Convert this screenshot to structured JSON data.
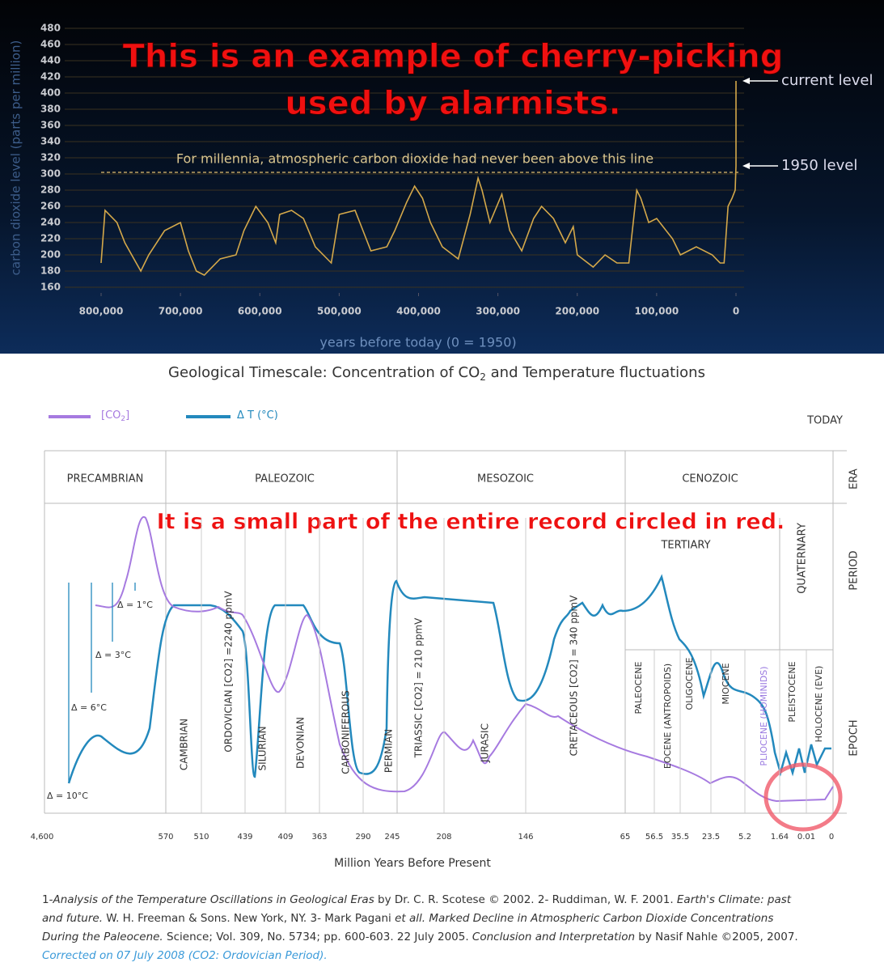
{
  "chart_data": {
    "type": "line",
    "annotation_lines": [
      "This is an example of cherry-picking",
      "used by alarmists."
    ],
    "ylabel": "carbon dioxide level (parts per million)",
    "xlabel": "years before today (0 = 1950)",
    "xlim": [
      800000,
      0
    ],
    "ylim": [
      160,
      480
    ],
    "yticks": [
      160,
      180,
      200,
      220,
      240,
      260,
      280,
      300,
      320,
      340,
      360,
      380,
      400,
      420,
      440,
      460,
      480
    ],
    "xticks": [
      {
        "value": 800000,
        "label": "800,000"
      },
      {
        "value": 700000,
        "label": "700,000"
      },
      {
        "value": 600000,
        "label": "600,000"
      },
      {
        "value": 500000,
        "label": "500,000"
      },
      {
        "value": 400000,
        "label": "400,000"
      },
      {
        "value": 300000,
        "label": "300,000"
      },
      {
        "value": 200000,
        "label": "200,000"
      },
      {
        "value": 100000,
        "label": "100,000"
      },
      0
    ],
    "grid": true,
    "color": "#d4a84a",
    "x": [
      800000,
      795000,
      780000,
      770000,
      750000,
      740000,
      720000,
      700000,
      690000,
      680000,
      670000,
      650000,
      630000,
      620000,
      605000,
      590000,
      580000,
      575000,
      560000,
      545000,
      530000,
      510000,
      500000,
      480000,
      470000,
      460000,
      440000,
      430000,
      415000,
      405000,
      395000,
      385000,
      370000,
      350000,
      335000,
      325000,
      320000,
      310000,
      295000,
      285000,
      270000,
      255000,
      245000,
      230000,
      215000,
      205000,
      200000,
      180000,
      165000,
      150000,
      135000,
      125000,
      120000,
      110000,
      100000,
      80000,
      70000,
      50000,
      30000,
      20000,
      15000,
      10000,
      5000,
      1000,
      0,
      0
    ],
    "values": [
      190,
      255,
      240,
      215,
      180,
      200,
      230,
      240,
      205,
      180,
      175,
      195,
      200,
      230,
      260,
      240,
      215,
      250,
      255,
      245,
      210,
      190,
      250,
      255,
      230,
      205,
      210,
      230,
      265,
      285,
      270,
      240,
      210,
      195,
      250,
      295,
      280,
      240,
      275,
      230,
      205,
      245,
      260,
      245,
      215,
      235,
      200,
      185,
      200,
      190,
      190,
      280,
      270,
      240,
      245,
      220,
      200,
      210,
      200,
      190,
      190,
      260,
      270,
      280,
      310,
      415
    ],
    "reference_line": {
      "value": 302,
      "label": "For millennia, atmospheric carbon dioxide had never been above this line"
    },
    "markers": [
      {
        "value": 415,
        "label": "current level"
      },
      {
        "value": 310,
        "label": "1950 level"
      }
    ]
  },
  "geo_chart": {
    "title": [
      "Geological Timescale: Concentration of CO",
      "2",
      " and Temperature fluctuations"
    ],
    "legend": [
      {
        "label": [
          "[CO",
          "2",
          "]"
        ],
        "color": "#a67ae0"
      },
      {
        "label": [
          "Δ T (°C)"
        ],
        "color": "#2389bd"
      }
    ],
    "today": "TODAY",
    "eras": [
      "PRECAMBRIAN",
      "PALEOZOIC",
      "MESOZOIC",
      "CENOZOIC"
    ],
    "row_labels": [
      "ERA",
      "PERIOD",
      "EPOCH"
    ],
    "annotation": "It is a small part of the entire record circled in red.",
    "tertiary": "TERTIARY",
    "quaternary": "QUATERNARY",
    "periods": [
      "CAMBRIAN",
      "ORDOVICIAN [CO2] =2240 ppmV",
      "SILURIAN",
      "DEVONIAN",
      "CARBONIFEROUS",
      "PERMIAN",
      "TRIASSIC [CO2] = 210 ppmV",
      "JURASIC",
      "CRETACEOUS [CO2] = 340 ppmV"
    ],
    "epochs": [
      "PALEOCENE",
      "EOCENE (ANTROPOIDS)",
      "OLIGOCENE",
      "MIOCENE",
      "PLIOCENE (HOMINIDS)",
      "PLEISTOCENE",
      "HOLOCENE (EVE)"
    ],
    "deltas": [
      "Δ = 1°C",
      "Δ = 3°C",
      "Δ = 6°C",
      "Δ = 10°C"
    ],
    "xticks": [
      "4,600",
      "570",
      "510",
      "439",
      "409",
      "363",
      "290",
      "245",
      "208",
      "146",
      "65",
      "56.5",
      "35.5",
      "23.5",
      "5.2",
      "1.64",
      "0.01",
      "0"
    ],
    "xlabel": "Million Years Before Present",
    "footnote": [
      [
        {
          "text": "1-",
          "italic": false
        },
        {
          "text": "Analysis of the Temperature Oscillations in Geological Eras",
          "italic": true
        },
        {
          "text": " by Dr. C. R. Scotese © 2002. 2- Ruddiman, W. F. 2001. ",
          "italic": false
        },
        {
          "text": "Earth's Climate: past",
          "italic": true
        }
      ],
      [
        {
          "text": "and future.",
          "italic": true
        },
        {
          "text": " W. H. Freeman & Sons. New York, NY. 3- Mark Pagani ",
          "italic": false
        },
        {
          "text": "et all. Marked Decline in Atmospheric Carbon Dioxide Concentrations",
          "italic": true
        }
      ],
      [
        {
          "text": "During the Paleocene.",
          "italic": true
        },
        {
          "text": " Science; Vol. 309, No. 5734; pp. 600-603. 22 July 2005. ",
          "italic": false
        },
        {
          "text": "Conclusion and Interpretation",
          "italic": true
        },
        {
          "text": " by Nasif Nahle ©2005, 2007.",
          "italic": false
        }
      ],
      [
        {
          "text": "Corrected on 07 July 2008 (CO2: Ordovician Period).",
          "italic": true
        }
      ]
    ]
  }
}
